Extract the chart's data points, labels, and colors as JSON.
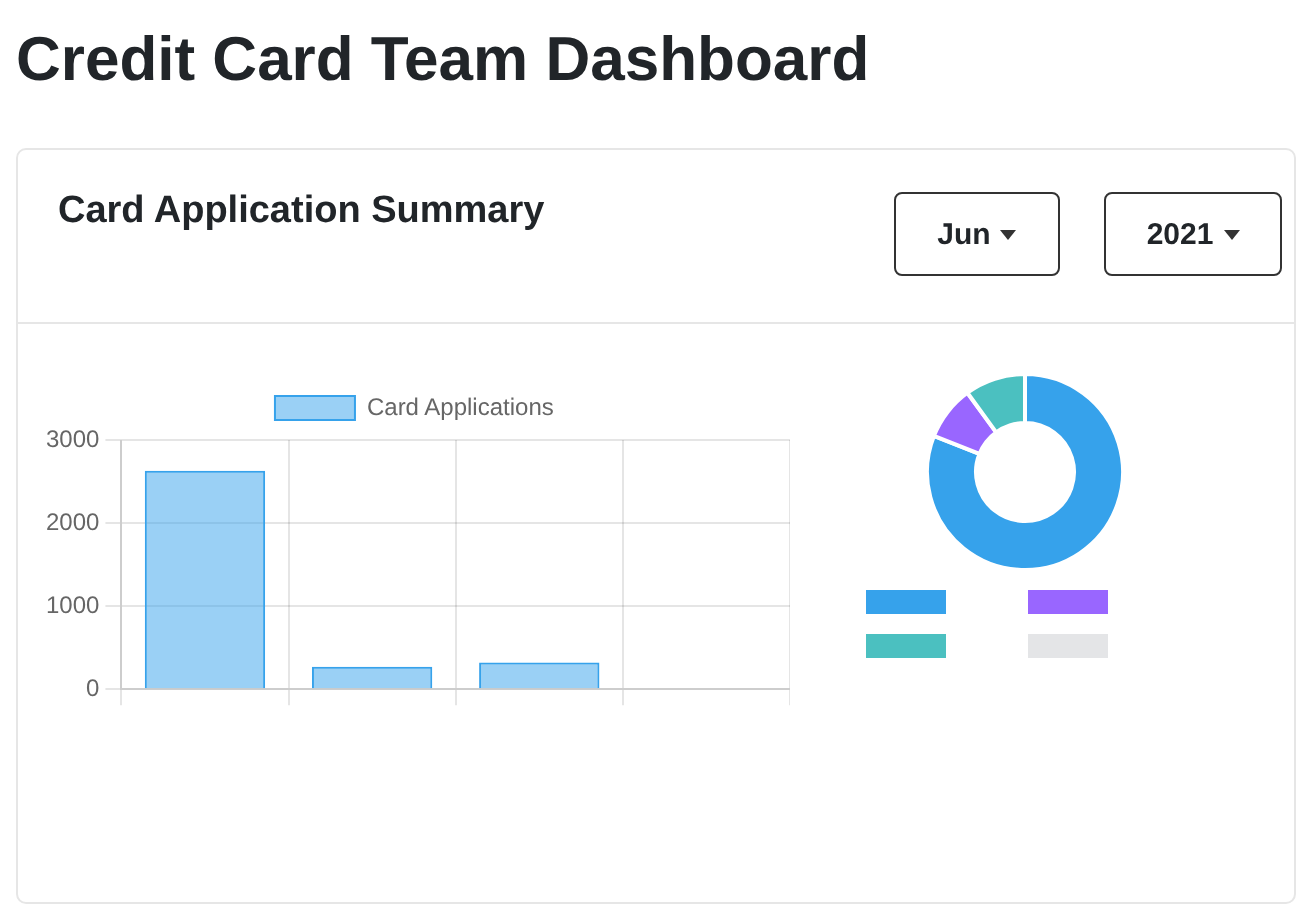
{
  "chart_data": [
    {
      "type": "bar",
      "title": "Credit Card Team Dashboard",
      "subtitle": "Card Application Summary",
      "annotations": [
        "Jun",
        "2021"
      ],
      "categories": [
        null,
        null,
        null,
        null
      ],
      "series": [
        {
          "name": "Card Applications",
          "color": "#36a2eb",
          "values": [
            2630,
            270,
            320,
            0
          ]
        }
      ],
      "ylim": [
        0,
        3000
      ],
      "yticks": [
        0,
        1000,
        2000,
        3000
      ],
      "grid": true,
      "legend": "top"
    },
    {
      "type": "donut",
      "categories": [
        null,
        null,
        null,
        null
      ],
      "values": [
        81,
        9,
        10,
        0
      ],
      "colors": [
        "#36a2eb",
        "#9966ff",
        "#4bc0c0",
        "#e4e5e7"
      ]
    }
  ]
}
